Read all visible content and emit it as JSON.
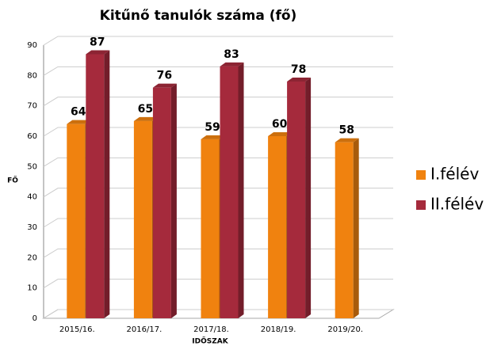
{
  "chart_data": {
    "type": "bar3d",
    "title": "Kitűnő tanulók száma (fő)",
    "categories": [
      "2015/16.",
      "2016/17.",
      "2017/18.",
      "2018/19.",
      "2019/20."
    ],
    "series": [
      {
        "name": "I.félév",
        "color": "#f0820f",
        "values": [
          64,
          65,
          59,
          60,
          58
        ]
      },
      {
        "name": "II.félév",
        "color": "#a52a3c",
        "values": [
          87,
          76,
          83,
          78,
          null
        ]
      }
    ],
    "xlabel": "IDŐSZAK",
    "ylabel": "FŐ",
    "ylim": [
      0,
      90
    ],
    "yticks": [
      0,
      10,
      20,
      30,
      40,
      50,
      60,
      70,
      80,
      90
    ],
    "grid": true,
    "legend": "right"
  }
}
